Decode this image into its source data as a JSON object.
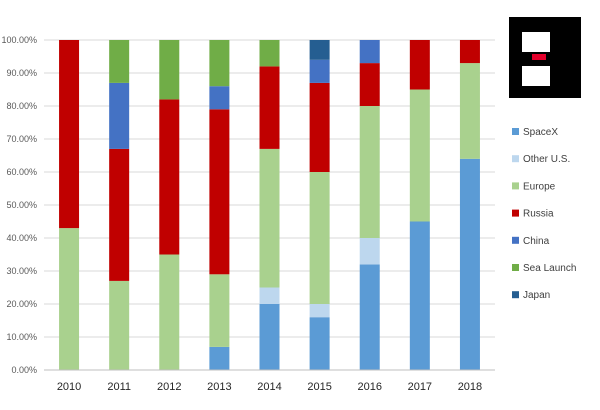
{
  "chart_data": {
    "type": "bar",
    "stacked": true,
    "normalized": true,
    "title": "",
    "xlabel": "",
    "ylabel": "",
    "categories": [
      "2010",
      "2011",
      "2012",
      "2013",
      "2014",
      "2015",
      "2016",
      "2017",
      "2018"
    ],
    "ylim": [
      0,
      100
    ],
    "yticks": [
      "0.00%",
      "10.00%",
      "20.00%",
      "30.00%",
      "40.00%",
      "50.00%",
      "60.00%",
      "70.00%",
      "80.00%",
      "90.00%",
      "100.00%"
    ],
    "grid": true,
    "legend_position": "right",
    "series": [
      {
        "name": "SpaceX",
        "color": "#5b9bd5",
        "values": [
          0,
          0,
          0,
          7,
          20,
          16,
          32,
          45,
          64
        ]
      },
      {
        "name": "Other U.S.",
        "color": "#bdd7ee",
        "values": [
          0,
          0,
          0,
          0,
          5,
          4,
          8,
          0,
          0
        ]
      },
      {
        "name": "Europe",
        "color": "#a9d18e",
        "values": [
          43,
          27,
          35,
          22,
          42,
          40,
          40,
          40,
          29
        ]
      },
      {
        "name": "Russia",
        "color": "#c00000",
        "values": [
          57,
          40,
          47,
          50,
          25,
          27,
          13,
          15,
          7
        ]
      },
      {
        "name": "China",
        "color": "#4472c4",
        "values": [
          0,
          20,
          0,
          7,
          0,
          7,
          7,
          0,
          0
        ]
      },
      {
        "name": "Sea Launch",
        "color": "#70ad47",
        "values": [
          0,
          13,
          18,
          14,
          8,
          0,
          0,
          0,
          0
        ]
      },
      {
        "name": "Japan",
        "color": "#255e91",
        "values": [
          0,
          0,
          0,
          0,
          0,
          6,
          0,
          0,
          0
        ]
      }
    ]
  },
  "logo": {
    "name": "logo-icon",
    "accent": "#e4002b"
  }
}
